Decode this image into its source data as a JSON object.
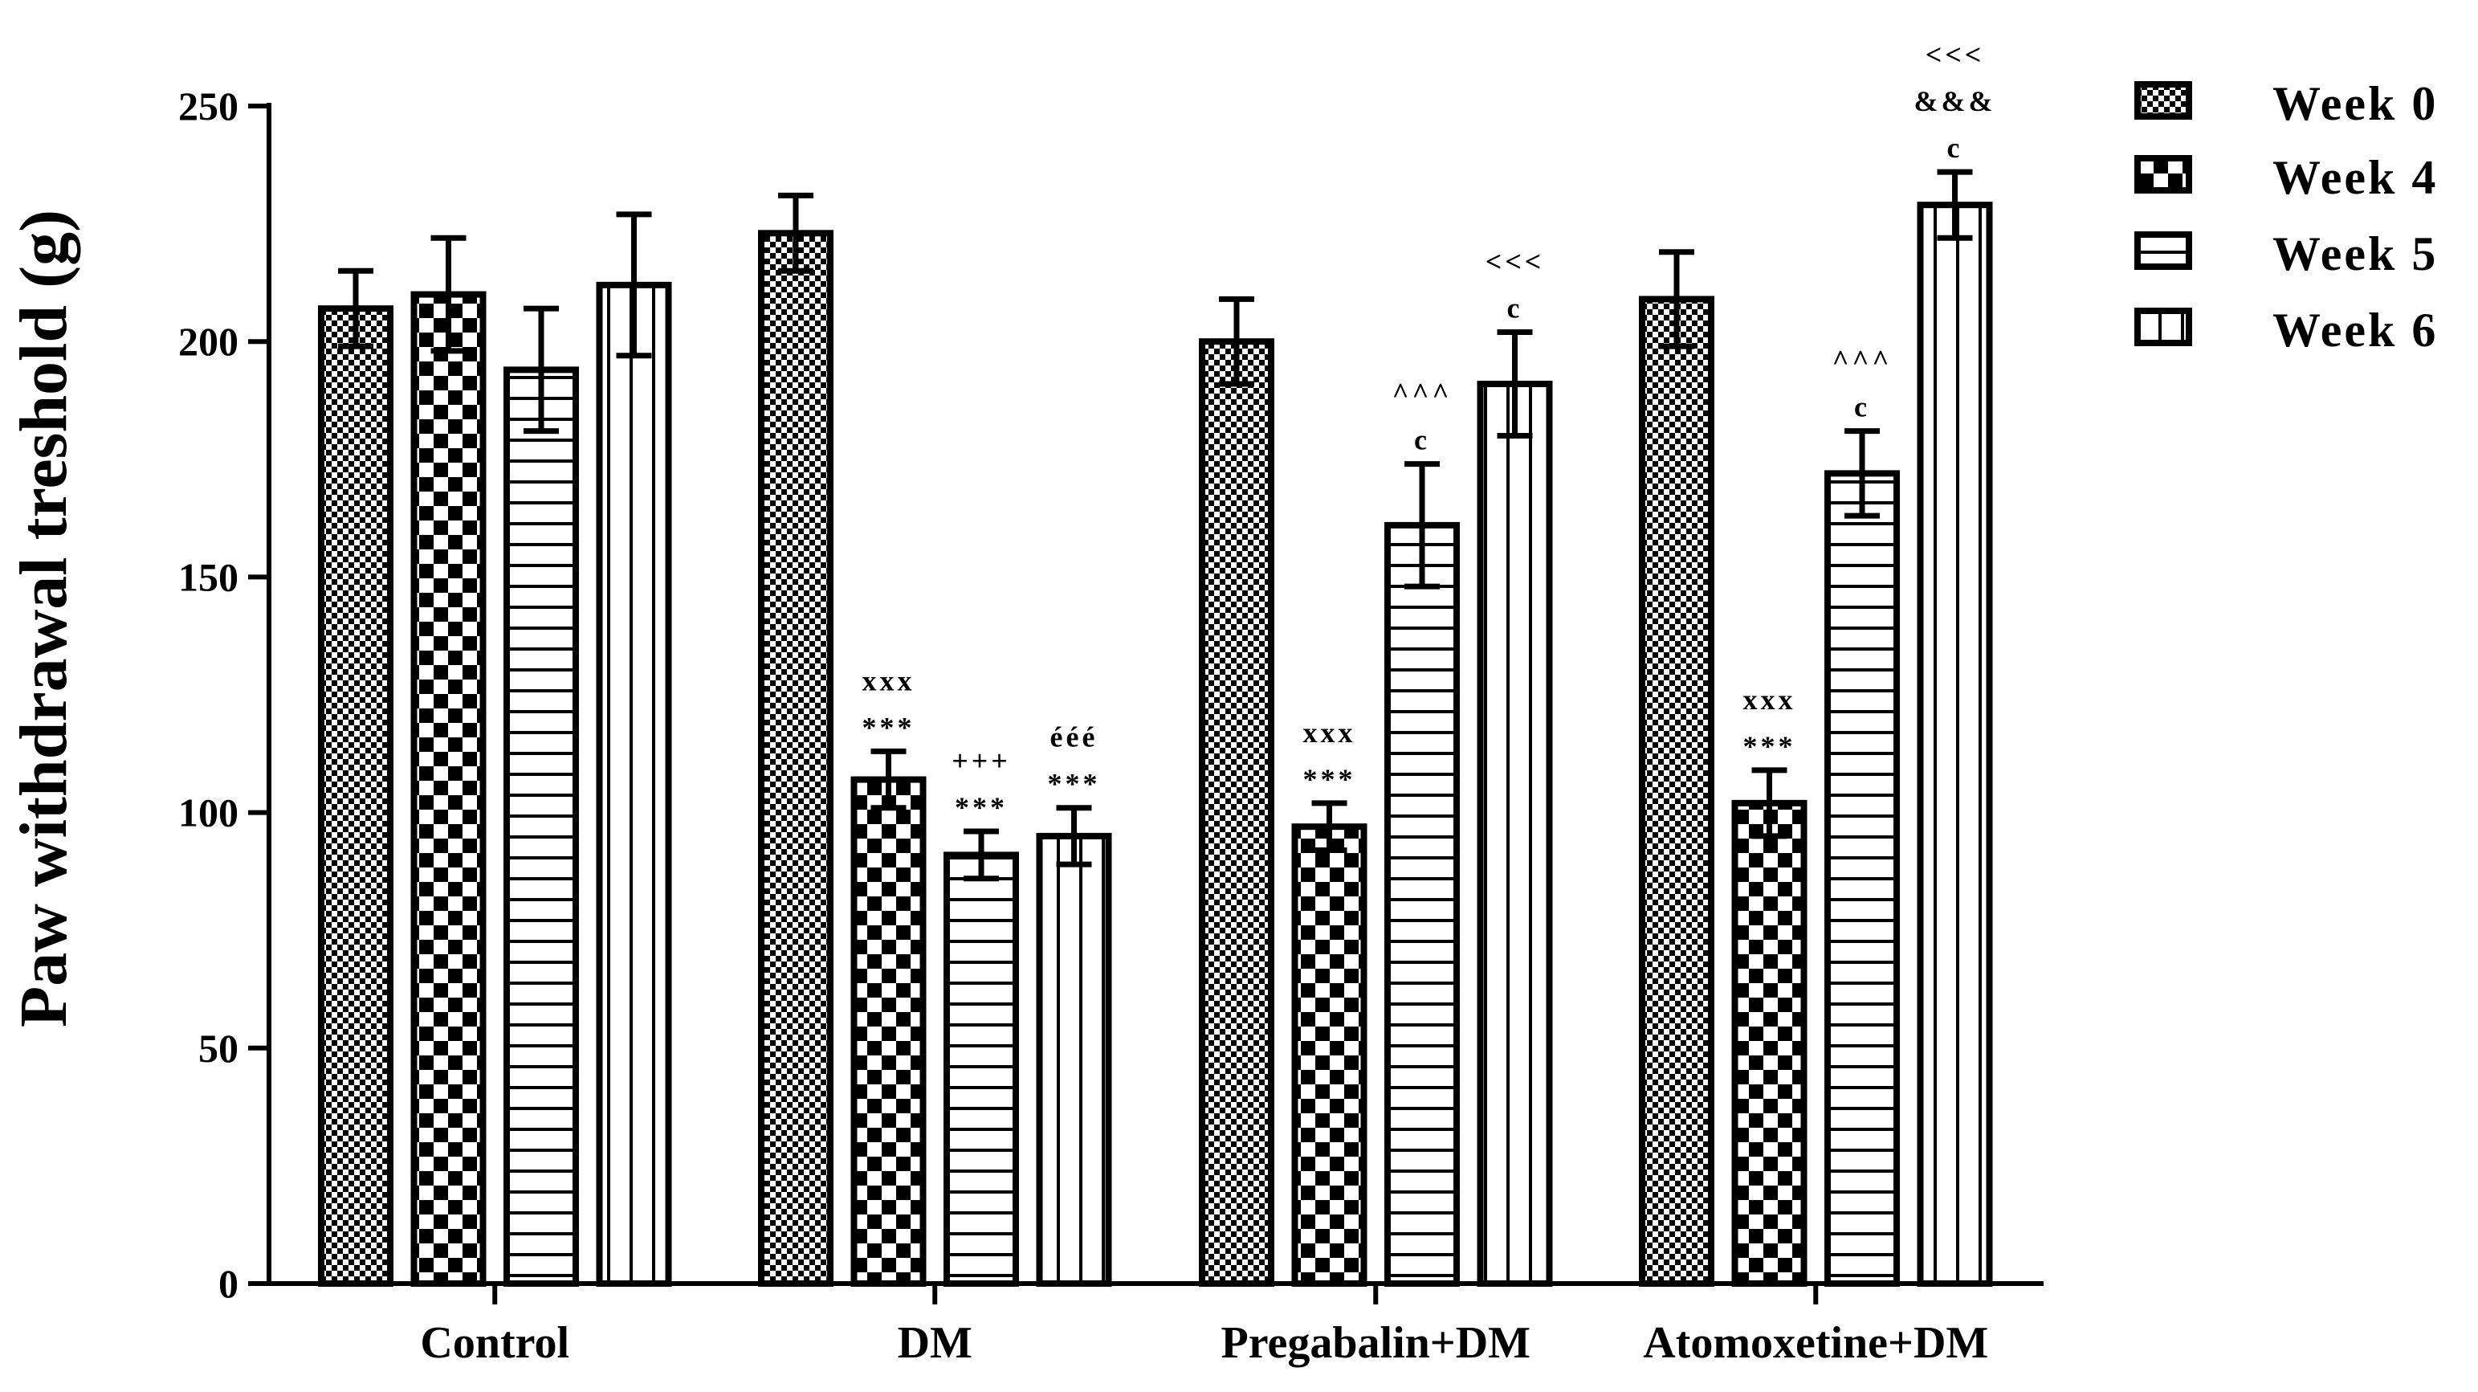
{
  "chart_data": {
    "type": "bar",
    "title": "",
    "xlabel": "",
    "ylabel": "Paw withdrawal treshold (g)",
    "ylim": [
      0,
      250
    ],
    "yticks": [
      "0",
      "50",
      "100",
      "150",
      "200",
      "250"
    ],
    "grid": false,
    "legend_position": "top-right",
    "categories": [
      "Control",
      "DM",
      "Pregabalin+DM",
      "Atomoxetine+DM"
    ],
    "series": [
      {
        "name": "Week 0",
        "pattern": "checker-fine",
        "values": [
          207,
          223,
          200,
          209
        ],
        "errors": [
          8,
          8,
          9,
          10
        ]
      },
      {
        "name": "Week 4",
        "pattern": "checker-coarse",
        "values": [
          210,
          107,
          97,
          102
        ],
        "errors": [
          12,
          6,
          5,
          7
        ]
      },
      {
        "name": "Week 5",
        "pattern": "horizontal-lines",
        "values": [
          194,
          91,
          161,
          172
        ],
        "errors": [
          13,
          5,
          13,
          9
        ]
      },
      {
        "name": "Week 6",
        "pattern": "vertical-lines",
        "values": [
          212,
          95,
          191,
          229
        ],
        "errors": [
          15,
          6,
          11,
          7
        ]
      }
    ],
    "annotations": [
      {
        "category": 1,
        "series": 1,
        "lines": [
          "xxx",
          "***"
        ]
      },
      {
        "category": 1,
        "series": 2,
        "lines": [
          "+++",
          "***"
        ]
      },
      {
        "category": 1,
        "series": 3,
        "lines": [
          "ééé",
          "***"
        ]
      },
      {
        "category": 2,
        "series": 1,
        "lines": [
          "xxx",
          "***"
        ]
      },
      {
        "category": 2,
        "series": 2,
        "lines": [
          "^^^",
          "c"
        ]
      },
      {
        "category": 2,
        "series": 3,
        "lines": [
          "<<<",
          "c"
        ]
      },
      {
        "category": 3,
        "series": 1,
        "lines": [
          "xxx",
          "***"
        ]
      },
      {
        "category": 3,
        "series": 2,
        "lines": [
          "^^^",
          "c"
        ]
      },
      {
        "category": 3,
        "series": 3,
        "lines": [
          "<<<",
          "&&&",
          "c"
        ]
      }
    ]
  }
}
